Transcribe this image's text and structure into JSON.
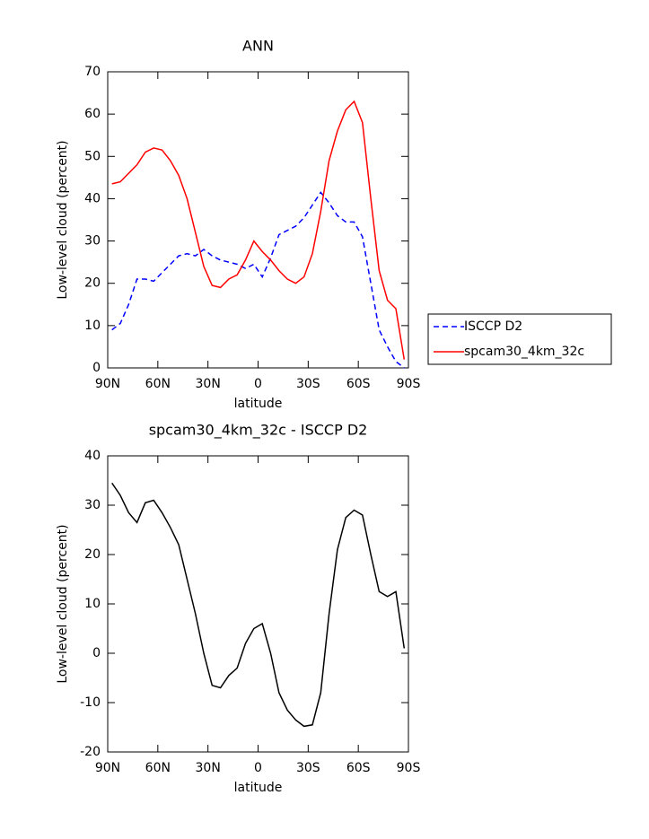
{
  "chart_data": [
    {
      "type": "line",
      "title": "ANN",
      "xlabel": "latitude",
      "ylabel": "Low-level cloud (percent)",
      "x": [
        87.5,
        82.5,
        77.5,
        72.5,
        67.5,
        62.5,
        57.5,
        52.5,
        47.5,
        42.5,
        37.5,
        32.5,
        27.5,
        22.5,
        17.5,
        12.5,
        7.5,
        2.5,
        -2.5,
        -7.5,
        -12.5,
        -17.5,
        -22.5,
        -27.5,
        -32.5,
        -37.5,
        -42.5,
        -47.5,
        -52.5,
        -57.5,
        -62.5,
        -67.5,
        -72.5,
        -77.5,
        -82.5,
        -87.5
      ],
      "series": [
        {
          "name": "ISCCP D2",
          "color": "#0000ff",
          "style": "dashed",
          "values": [
            9,
            10.5,
            15,
            21,
            21,
            20.5,
            22.5,
            24.5,
            26.5,
            27,
            26.5,
            28,
            26.5,
            25.5,
            25,
            24.5,
            23.5,
            24.5,
            21.5,
            26,
            31.5,
            32.5,
            33.5,
            35.5,
            38.5,
            41.5,
            39,
            36,
            34.5,
            34.5,
            31,
            20,
            9,
            5,
            1.5,
            0
          ]
        },
        {
          "name": "spcam30_4km_32c",
          "color": "#ff0000",
          "style": "solid",
          "values": [
            43.5,
            44,
            46,
            48,
            51,
            52,
            51.5,
            49,
            45.5,
            40,
            32,
            24,
            19.5,
            19,
            21,
            22,
            25.5,
            30,
            27.5,
            25.5,
            23,
            21,
            20,
            21.5,
            27,
            37,
            49,
            56,
            61,
            63,
            58,
            40,
            23,
            16,
            14,
            2
          ]
        }
      ],
      "xlim": [
        90,
        -90
      ],
      "xticks": [
        {
          "value": 90,
          "label": "90N"
        },
        {
          "value": 60,
          "label": "60N"
        },
        {
          "value": 30,
          "label": "30N"
        },
        0,
        {
          "value": -30,
          "label": "30S"
        },
        {
          "value": -60,
          "label": "60S"
        },
        {
          "value": -90,
          "label": "90S"
        }
      ],
      "ylim": [
        0,
        70
      ],
      "yticks": [
        0,
        10,
        20,
        30,
        40,
        50,
        60,
        70
      ],
      "legend": "right"
    },
    {
      "type": "line",
      "title": "spcam30_4km_32c - ISCCP D2",
      "xlabel": "latitude",
      "ylabel": "Low-level cloud (percent)",
      "x": [
        87.5,
        82.5,
        77.5,
        72.5,
        67.5,
        62.5,
        57.5,
        52.5,
        47.5,
        42.5,
        37.5,
        32.5,
        27.5,
        22.5,
        17.5,
        12.5,
        7.5,
        2.5,
        -2.5,
        -7.5,
        -12.5,
        -17.5,
        -22.5,
        -27.5,
        -32.5,
        -37.5,
        -42.5,
        -47.5,
        -52.5,
        -57.5,
        -62.5,
        -67.5,
        -72.5,
        -77.5,
        -82.5,
        -87.5
      ],
      "series": [
        {
          "color": "#000000",
          "style": "solid",
          "values": [
            34.5,
            32,
            28.5,
            26.5,
            30.5,
            31,
            28.5,
            25.5,
            22,
            15,
            8,
            0,
            -6.5,
            -7,
            -4.5,
            -3,
            2,
            5,
            6,
            0,
            -8,
            -11.5,
            -13.5,
            -14.8,
            -14.5,
            -8,
            8,
            21,
            27.5,
            29,
            28,
            20,
            12.5,
            11.5,
            12.5,
            1
          ]
        }
      ],
      "xlim": [
        90,
        -90
      ],
      "xticks": [
        {
          "value": 90,
          "label": "90N"
        },
        {
          "value": 60,
          "label": "60N"
        },
        {
          "value": 30,
          "label": "30N"
        },
        0,
        {
          "value": -30,
          "label": "30S"
        },
        {
          "value": -60,
          "label": "60S"
        },
        {
          "value": -90,
          "label": "90S"
        }
      ],
      "ylim": [
        -20,
        40
      ],
      "yticks": [
        -20,
        -10,
        0,
        10,
        20,
        30,
        40
      ]
    }
  ]
}
